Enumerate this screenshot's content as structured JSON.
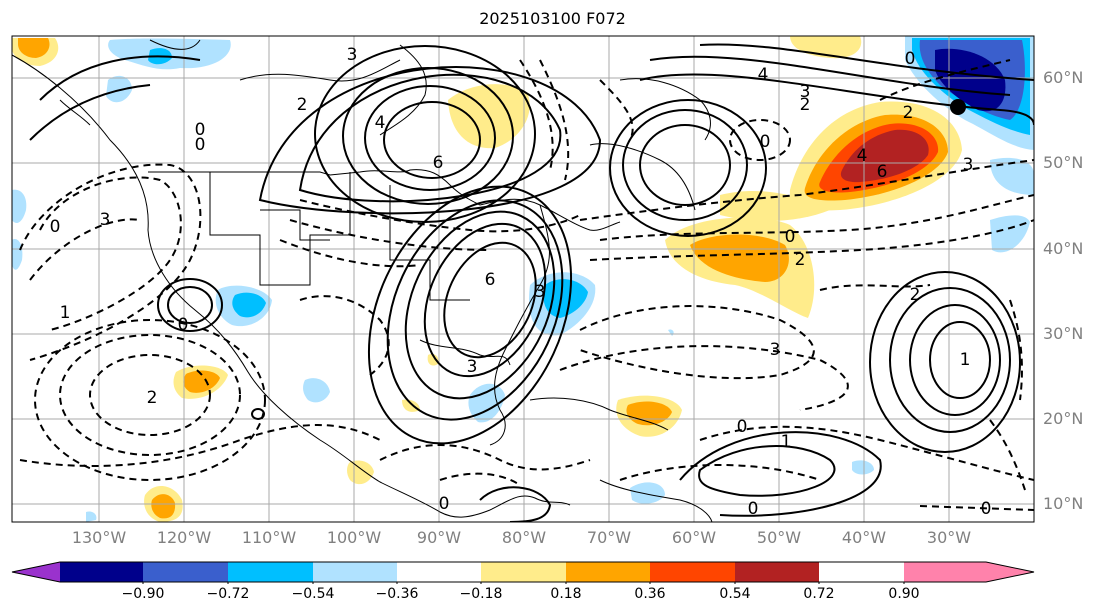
{
  "title": "2025103100 F072",
  "lat_labels": [
    "60°N",
    "50°N",
    "40°N",
    "30°N",
    "20°N",
    "10°N"
  ],
  "lon_labels": [
    "130°W",
    "120°W",
    "110°W",
    "100°W",
    "90°W",
    "80°W",
    "70°W",
    "60°W",
    "50°W",
    "40°W",
    "30°W"
  ],
  "colorbar": {
    "ticks": [
      "−0.90",
      "−0.72",
      "−0.54",
      "−0.36",
      "−0.18",
      "0.18",
      "0.36",
      "0.54",
      "0.72",
      "0.90"
    ],
    "colors": [
      "#9a32cd",
      "#00008b",
      "#3a5fcd",
      "#00bfff",
      "#b0e2ff",
      "#ffffff",
      "#ffec8b",
      "#ffa500",
      "#ff4500",
      "#b22222",
      "#ff82ab"
    ]
  },
  "contour_labels": [
    "3",
    "2",
    "4",
    "6",
    "0",
    "3",
    "0",
    "4",
    "3",
    "2",
    "0",
    "2",
    "4",
    "6",
    "3",
    "0",
    "0",
    "2",
    "2",
    "6",
    "3",
    "1",
    "0",
    "3",
    "2",
    "3",
    "0",
    "1",
    "0",
    "0",
    "0",
    "1",
    "0"
  ],
  "colors": {
    "grid": "#a9a9a9",
    "coast": "#000000",
    "tick_text": "#808080"
  },
  "marker": {
    "name": "black-dot"
  }
}
